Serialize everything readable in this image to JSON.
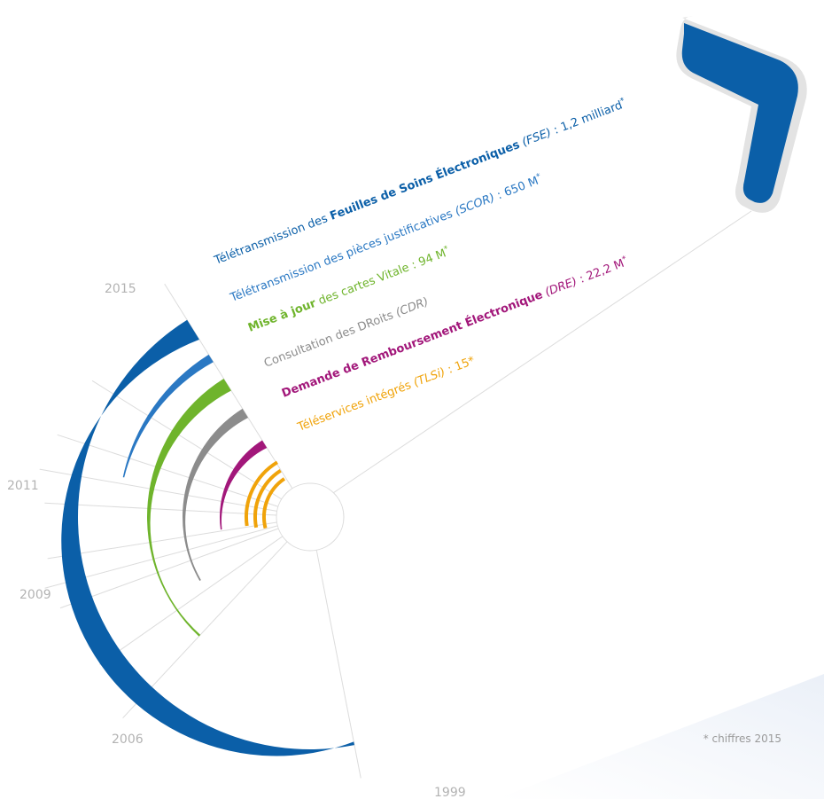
{
  "footnote": "* chiffres 2015",
  "colors": {
    "fse": "#0b5fa8",
    "scor": "#2a78c3",
    "vitale": "#6fb42c",
    "cdr": "#8c8c8c",
    "dre": "#a2177a",
    "tlsi": "#f0a30a",
    "grid": "#dcdcdc",
    "year": "#b3b3b3"
  },
  "chart_data": {
    "type": "radial-timeline",
    "years": [
      "2015",
      "2011",
      "2009",
      "2006",
      "1999"
    ],
    "series": [
      {
        "key": "fse",
        "start_year": 1999,
        "end_year": 2015,
        "label": {
          "pre": "Télétransmission des ",
          "bold": "Feuilles de Soins Électroniques",
          "mid": " ",
          "italic": "(FSE)",
          "sep": " : ",
          "value": "1,2 milliard",
          "star": "*"
        }
      },
      {
        "key": "scor",
        "start_year": 2011,
        "end_year": 2015,
        "label": {
          "pre": "Télétransmission des pièces justificatives ",
          "bold": "",
          "mid": "",
          "italic": "(SCOR)",
          "sep": " : ",
          "value": "650 M",
          "star": "*"
        }
      },
      {
        "key": "vitale",
        "start_year": 2006,
        "end_year": 2015,
        "label": {
          "pre": "",
          "bold": "Mise à jour",
          "mid": " des cartes Vitale",
          "italic": "",
          "sep": " : ",
          "value": "94 M",
          "star": "*"
        }
      },
      {
        "key": "cdr",
        "start_year": 2007,
        "end_year": 2015,
        "label": {
          "pre": "Consultation des DRoits ",
          "bold": "",
          "mid": "",
          "italic": "(CDR)",
          "sep": "",
          "value": "",
          "star": ""
        }
      },
      {
        "key": "dre",
        "start_year": 2010,
        "end_year": 2015,
        "label": {
          "pre": "",
          "bold": "Demande de Remboursement Électronique",
          "mid": " ",
          "italic": "(DRE)",
          "sep": " : ",
          "value": "22,2 M",
          "star": "*"
        }
      },
      {
        "key": "tlsi",
        "start_year": 2011,
        "end_year": 2015,
        "label": {
          "pre": "Téléservices intégrés ",
          "bold": "",
          "mid": "",
          "italic": "(TLSi)",
          "sep": " : ",
          "value": "15*",
          "star": ""
        }
      }
    ]
  }
}
